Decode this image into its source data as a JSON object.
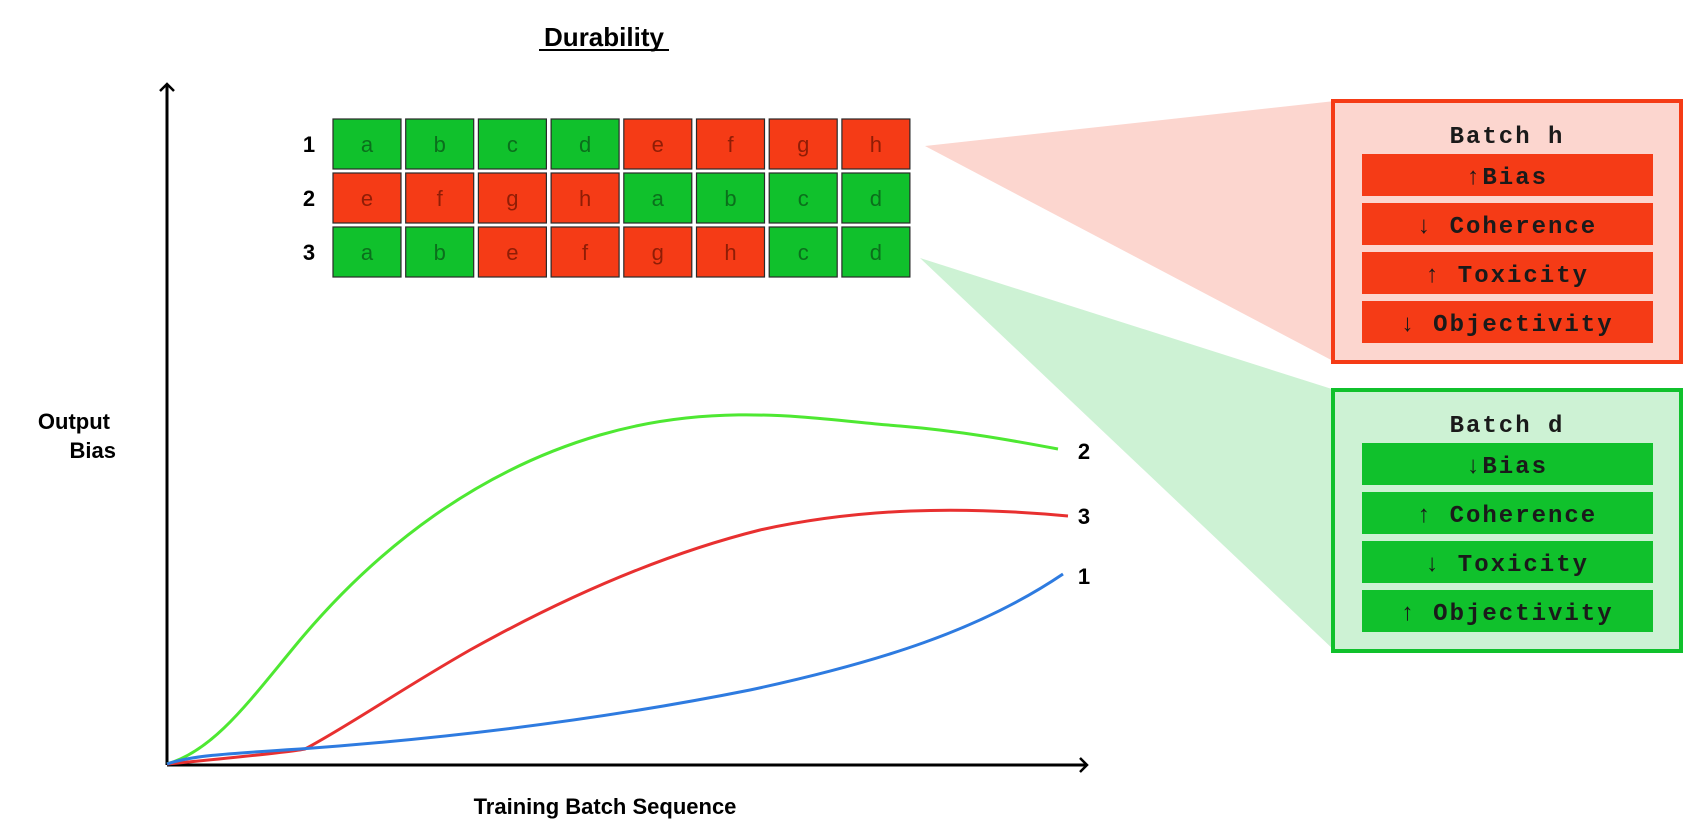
{
  "title": "Durability",
  "xlabel": "Training Batch Sequence",
  "ylabel_lines": [
    "Output",
    "Bias"
  ],
  "colors": {
    "good": "#10c12c",
    "bad": "#f53b16",
    "good_fill": "#cdf2d4",
    "bad_fill": "#fcd6cf",
    "curve_1": "#2e7be0",
    "curve_2": "#4ee832",
    "curve_3": "#e83030"
  },
  "sequences": [
    {
      "label": "1",
      "cells": [
        {
          "letter": "a",
          "kind": "good"
        },
        {
          "letter": "b",
          "kind": "good"
        },
        {
          "letter": "c",
          "kind": "good"
        },
        {
          "letter": "d",
          "kind": "good"
        },
        {
          "letter": "e",
          "kind": "bad"
        },
        {
          "letter": "f",
          "kind": "bad"
        },
        {
          "letter": "g",
          "kind": "bad"
        },
        {
          "letter": "h",
          "kind": "bad"
        }
      ]
    },
    {
      "label": "2",
      "cells": [
        {
          "letter": "e",
          "kind": "bad"
        },
        {
          "letter": "f",
          "kind": "bad"
        },
        {
          "letter": "g",
          "kind": "bad"
        },
        {
          "letter": "h",
          "kind": "bad"
        },
        {
          "letter": "a",
          "kind": "good"
        },
        {
          "letter": "b",
          "kind": "good"
        },
        {
          "letter": "c",
          "kind": "good"
        },
        {
          "letter": "d",
          "kind": "good"
        }
      ]
    },
    {
      "label": "3",
      "cells": [
        {
          "letter": "a",
          "kind": "good"
        },
        {
          "letter": "b",
          "kind": "good"
        },
        {
          "letter": "e",
          "kind": "bad"
        },
        {
          "letter": "f",
          "kind": "bad"
        },
        {
          "letter": "g",
          "kind": "bad"
        },
        {
          "letter": "h",
          "kind": "bad"
        },
        {
          "letter": "c",
          "kind": "good"
        },
        {
          "letter": "d",
          "kind": "good"
        }
      ]
    }
  ],
  "curves": [
    {
      "label": "2",
      "color_key": "curve_2"
    },
    {
      "label": "3",
      "color_key": "curve_3"
    },
    {
      "label": "1",
      "color_key": "curve_1"
    }
  ],
  "panels": [
    {
      "title": "Batch h",
      "kind": "bad",
      "items": [
        "↑Bias",
        "↓ Coherence",
        "↑ Toxicity",
        "↓  Objectivity"
      ]
    },
    {
      "title": "Batch d",
      "kind": "good",
      "items": [
        "↓Bias",
        "↑ Coherence",
        "↓ Toxicity",
        "↑  Objectivity"
      ]
    }
  ]
}
